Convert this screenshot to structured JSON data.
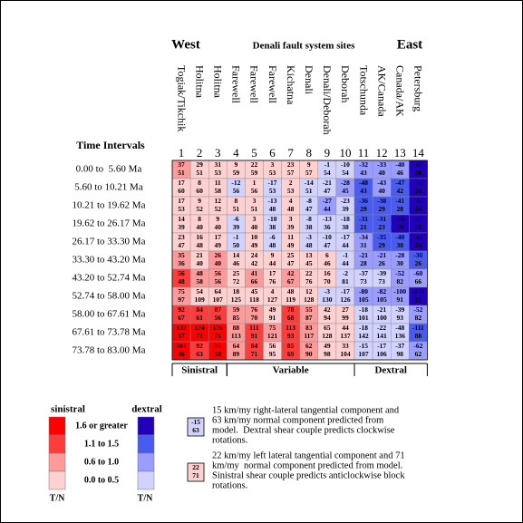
{
  "chart_data": {
    "type": "heatmap",
    "west_label": "West",
    "title": "Denali fault system sites",
    "east_label": "East",
    "row_axis_title": "Time Intervals",
    "columns": [
      {
        "number": 1,
        "name": "Togiak/Tikchik"
      },
      {
        "number": 2,
        "name": "Holitna"
      },
      {
        "number": 3,
        "name": "Holitna"
      },
      {
        "number": 4,
        "name": "Farewell"
      },
      {
        "number": 5,
        "name": "Farewell"
      },
      {
        "number": 6,
        "name": "Farewell"
      },
      {
        "number": 7,
        "name": "Kichatna"
      },
      {
        "number": 8,
        "name": "Denali"
      },
      {
        "number": 9,
        "name": "Denali/Deborah"
      },
      {
        "number": 10,
        "name": "Deborah"
      },
      {
        "number": 11,
        "name": "Totschunda"
      },
      {
        "number": 12,
        "name": "AK/Canada"
      },
      {
        "number": 13,
        "name": "Canada/AK"
      },
      {
        "number": 14,
        "name": "Petersburg"
      }
    ],
    "rows": [
      "0.00 to  5.60 Ma",
      "5.60 to 10.21 Ma",
      "10.21 to 19.62 Ma",
      "19.62 to 26.17 Ma",
      "26.17 to 33.30 Ma",
      "33.30 to 43.20 Ma",
      "43.20 to 52.74 Ma",
      "52.74 to 58.00 Ma",
      "58.00 to 67.61 Ma",
      "67.61 to 73.78 Ma",
      "73.78 to 83.00 Ma"
    ],
    "tangential": [
      [
        37,
        29,
        31,
        9,
        22,
        3,
        23,
        9,
        -1,
        -10,
        -32,
        -33,
        -40,
        -49
      ],
      [
        17,
        8,
        11,
        -12,
        1,
        -17,
        2,
        -14,
        -21,
        -28,
        -48,
        -43,
        -47,
        -52
      ],
      [
        17,
        9,
        12,
        8,
        3,
        -13,
        4,
        -8,
        -27,
        -23,
        -36,
        -38,
        -41,
        -45
      ],
      [
        14,
        8,
        9,
        -6,
        3,
        -10,
        3,
        -8,
        -13,
        -18,
        -31,
        -31,
        -34,
        -36
      ],
      [
        23,
        16,
        17,
        -1,
        10,
        -6,
        11,
        -3,
        -10,
        -17,
        -34,
        -35,
        -40,
        -46
      ],
      [
        35,
        21,
        26,
        14,
        24,
        9,
        25,
        13,
        6,
        -1,
        -21,
        -21,
        -28,
        -30
      ],
      [
        56,
        48,
        56,
        25,
        41,
        17,
        42,
        22,
        16,
        -2,
        -37,
        -39,
        -52,
        -60
      ],
      [
        75,
        54,
        64,
        18,
        45,
        4,
        48,
        12,
        -3,
        -17,
        -80,
        -82,
        -100,
        -133
      ],
      [
        92,
        84,
        87,
        59,
        76,
        49,
        78,
        55,
        42,
        27,
        -18,
        -21,
        -39,
        -52
      ],
      [
        132,
        124,
        126,
        88,
        111,
        75,
        113,
        83,
        65,
        44,
        -18,
        -22,
        -48,
        -111
      ],
      [
        101,
        92,
        95,
        64,
        84,
        56,
        85,
        62,
        49,
        33,
        -15,
        -17,
        -37,
        -62
      ]
    ],
    "normal": [
      [
        51,
        51,
        53,
        59,
        59,
        53,
        57,
        57,
        54,
        54,
        43,
        40,
        46,
        30
      ],
      [
        60,
        60,
        58,
        56,
        56,
        53,
        53,
        51,
        47,
        45,
        43,
        40,
        42,
        24
      ],
      [
        53,
        52,
        52,
        51,
        51,
        48,
        48,
        47,
        44,
        39,
        29,
        29,
        28,
        24
      ],
      [
        39,
        40,
        40,
        39,
        40,
        38,
        39,
        38,
        36,
        38,
        21,
        23,
        19,
        15
      ],
      [
        47,
        48,
        49,
        50,
        49,
        48,
        49,
        48,
        47,
        44,
        31,
        29,
        30,
        24
      ],
      [
        36,
        40,
        40,
        46,
        42,
        44,
        47,
        45,
        46,
        44,
        28,
        26,
        30,
        26
      ],
      [
        48,
        58,
        56,
        72,
        66,
        76,
        67,
        76,
        70,
        81,
        73,
        73,
        82,
        66
      ],
      [
        97,
        109,
        107,
        125,
        118,
        127,
        119,
        128,
        130,
        126,
        105,
        105,
        91,
        21
      ],
      [
        67,
        61,
        56,
        85,
        70,
        91,
        68,
        87,
        94,
        99,
        101,
        100,
        93,
        82
      ],
      [
        57,
        71,
        71,
        113,
        91,
        121,
        93,
        117,
        128,
        137,
        142,
        141,
        136,
        88
      ],
      [
        46,
        63,
        58,
        89,
        71,
        95,
        69,
        90,
        98,
        104,
        107,
        106,
        98,
        62
      ]
    ],
    "groups": [
      "Sinistral",
      "Variable",
      "Dextral"
    ],
    "legend": {
      "sinistral_title": "sinistral",
      "dextral_title": "dextral",
      "axis_label": "T/N",
      "levels": [
        {
          "label": "1.6 or greater",
          "min": 1.6,
          "sinistral_color": "#ff0000",
          "dextral_color": "#2200bb"
        },
        {
          "label": "1.1 to 1.5",
          "min": 1.1,
          "sinistral_color": "#ff3c3c",
          "dextral_color": "#4a5cf0"
        },
        {
          "label": "0.6 to 1.0",
          "min": 0.6,
          "sinistral_color": "#ff9a9a",
          "dextral_color": "#9a9cff"
        },
        {
          "label": "0.0 to 0.5",
          "min": 0,
          "sinistral_color": "#ffd0d0",
          "dextral_color": "#d2d2ff"
        }
      ]
    },
    "examples": [
      {
        "tangential": -15,
        "normal": 63,
        "text": [
          "15 km/my right-lateral tangential component and",
          "63 km/my normal component predicted from",
          "model.  Dextral shear couple predicts clockwise",
          "rotations."
        ]
      },
      {
        "tangential": 22,
        "normal": 71,
        "text": [
          "22 km/my left lateral tangential component and 71",
          "km/my  normal component predicted from model.",
          "Sinistral shear couple predicts anticlockwise block",
          "rotations."
        ]
      }
    ]
  }
}
